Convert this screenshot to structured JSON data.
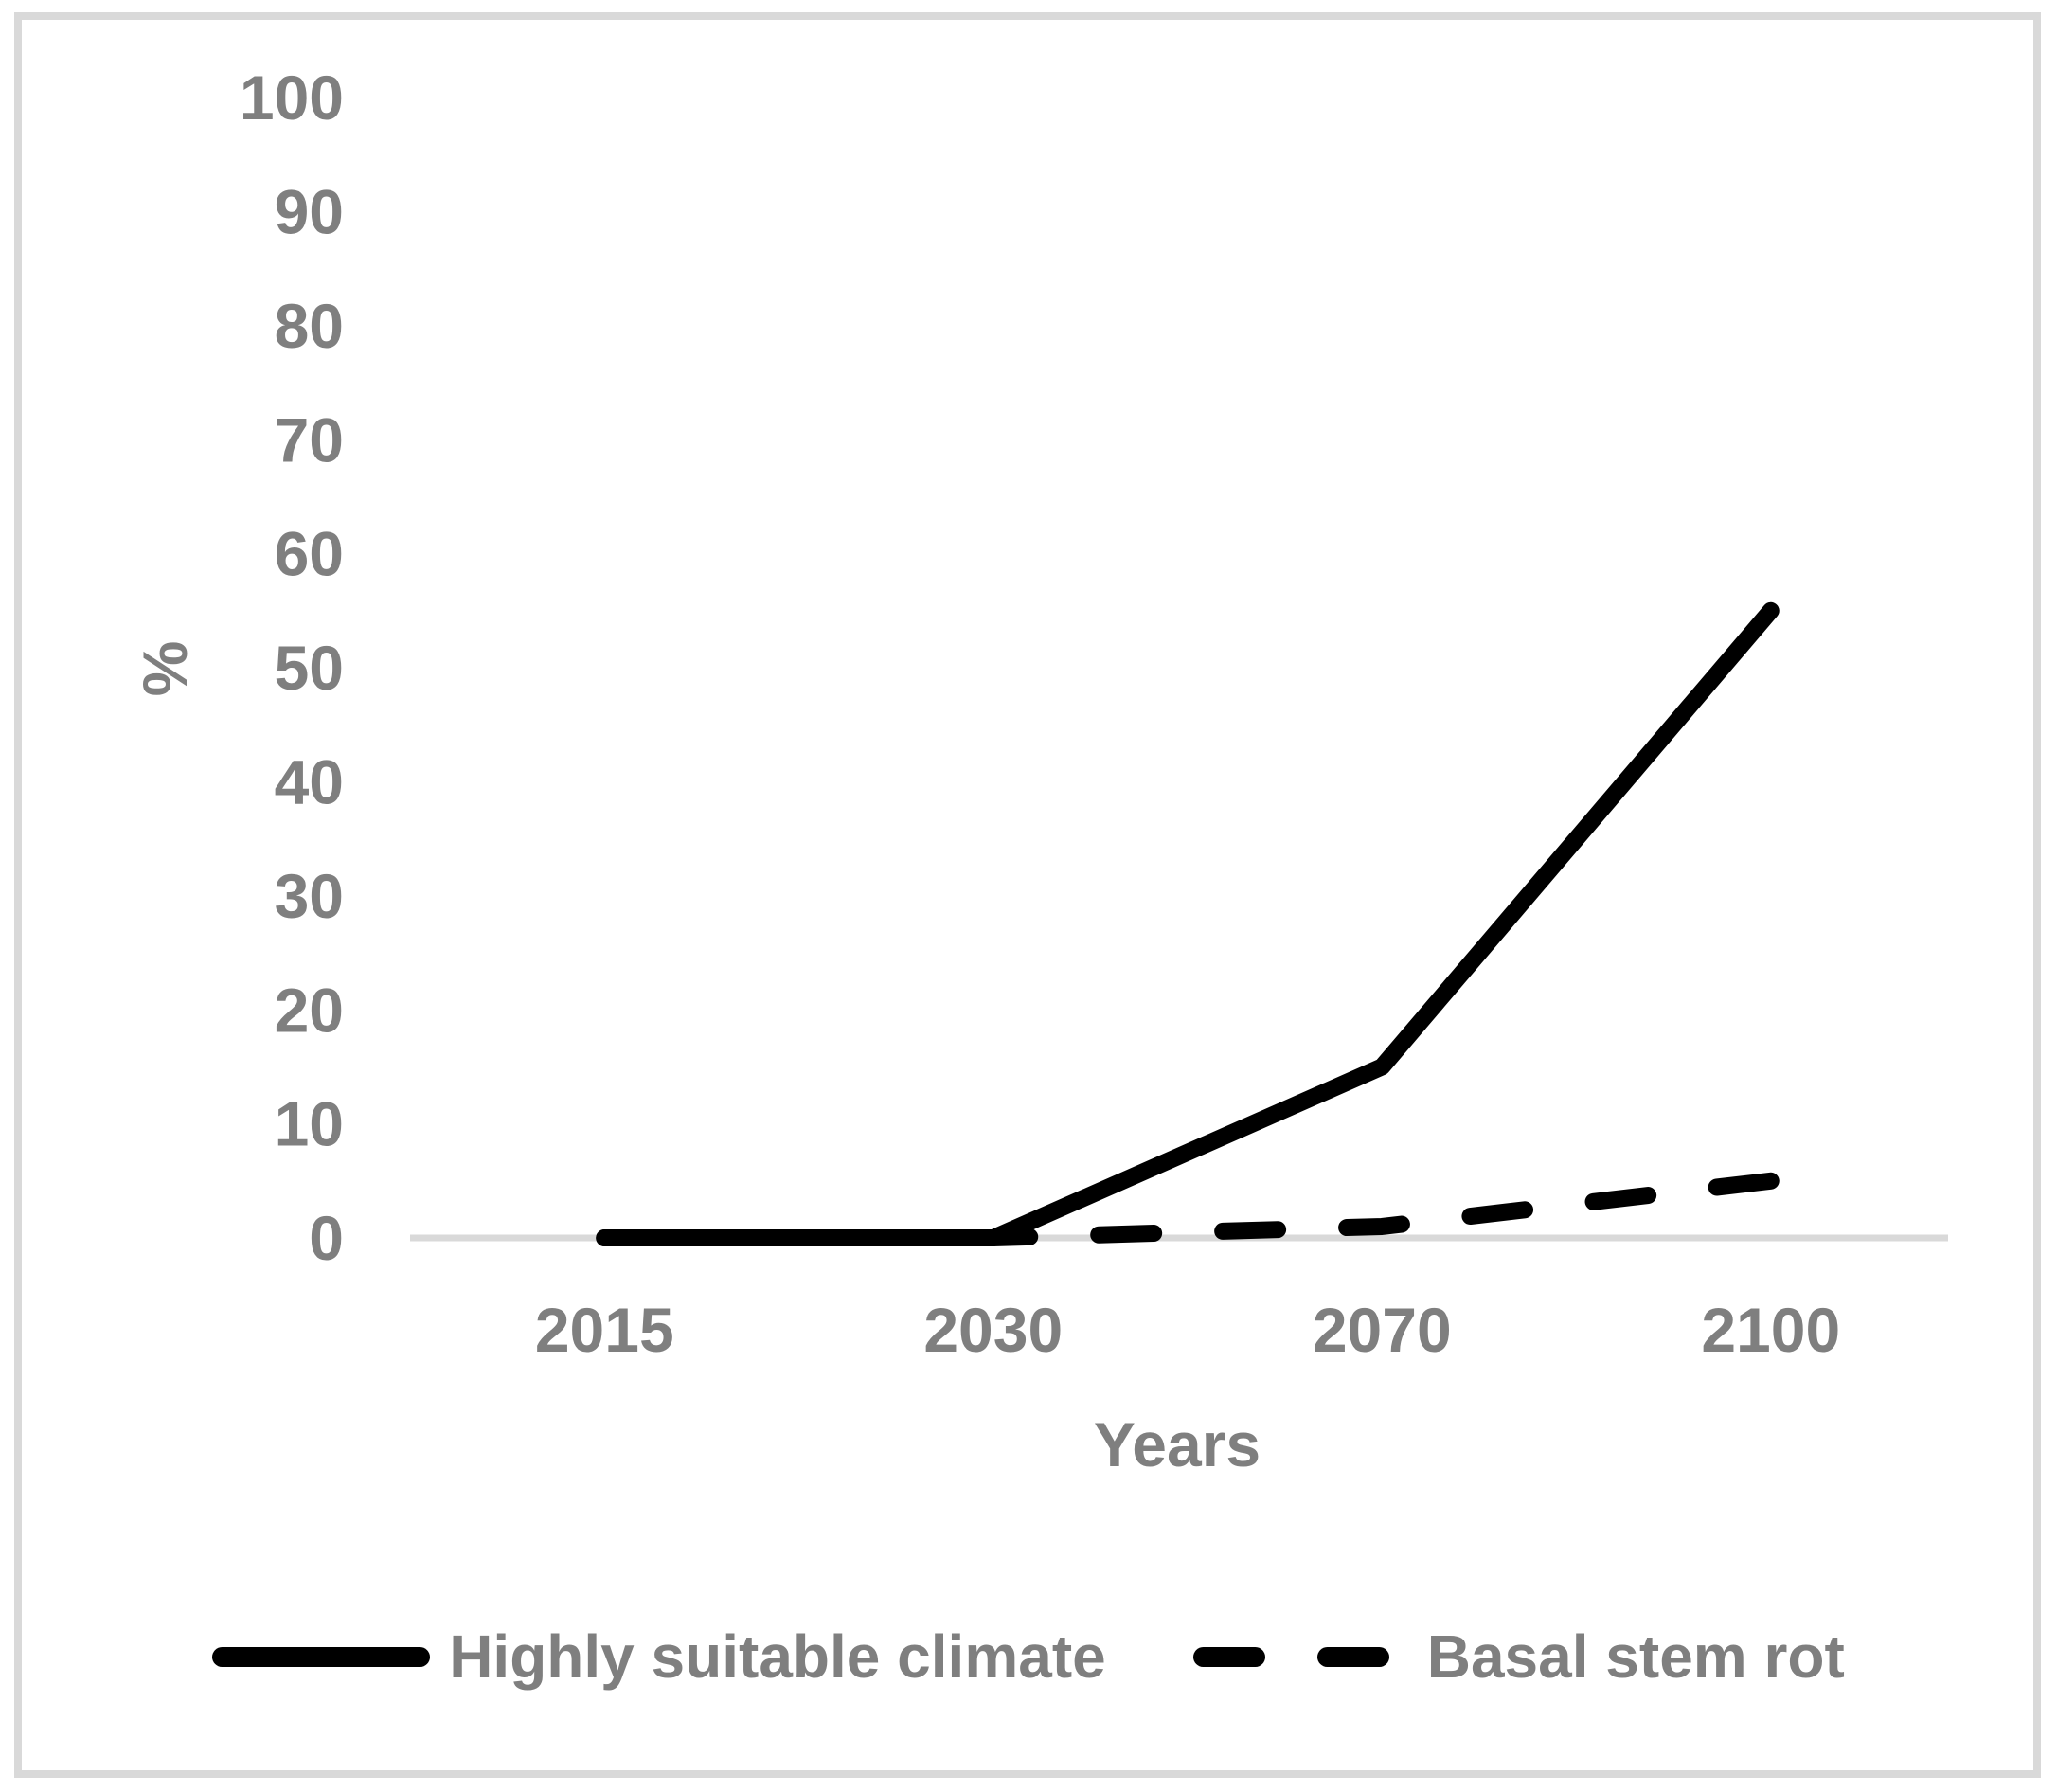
{
  "figure": {
    "background_color": "#ffffff",
    "border_color": "#d9d9d9"
  },
  "chart_data": {
    "type": "line",
    "title": "",
    "xlabel": "Years",
    "ylabel": "%",
    "x_categories": [
      "2015",
      "2030",
      "2070",
      "2100"
    ],
    "y_ticks": [
      0,
      10,
      20,
      30,
      40,
      50,
      60,
      70,
      80,
      90,
      100
    ],
    "ylim": [
      0,
      100
    ],
    "grid": false,
    "legend_position": "bottom",
    "series": [
      {
        "name": "Highly suitable climate",
        "line_style": "solid",
        "color": "#000000",
        "values": [
          0,
          0,
          15,
          55
        ]
      },
      {
        "name": "Basal stem rot",
        "line_style": "dashed",
        "color": "#000000",
        "values": [
          0,
          0,
          1,
          5
        ]
      }
    ],
    "colors": {
      "tick_text": "#7f7f7f",
      "axis_line": "#d9d9d9",
      "line": "#000000"
    }
  }
}
